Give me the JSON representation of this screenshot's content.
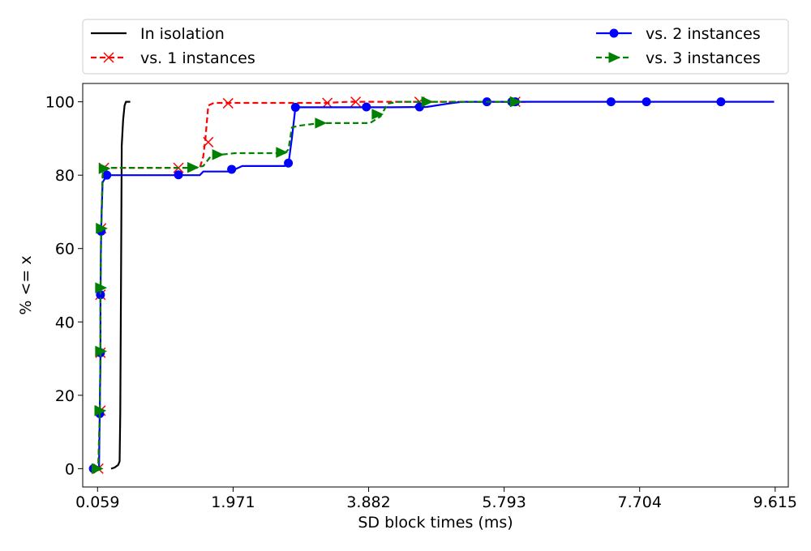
{
  "chart_data": {
    "type": "line",
    "title": "",
    "xlabel": "SD block times (ms)",
    "ylabel": "% <= x",
    "xlim": [
      -0.15,
      9.8
    ],
    "ylim": [
      -5,
      105
    ],
    "xticks": [
      0.059,
      1.971,
      3.882,
      5.793,
      7.704,
      9.615
    ],
    "xtick_labels": [
      "0.059",
      "1.971",
      "3.882",
      "5.793",
      "7.704",
      "9.615"
    ],
    "yticks": [
      0,
      20,
      40,
      60,
      80,
      100
    ],
    "ytick_labels": [
      "0",
      "20",
      "40",
      "60",
      "80",
      "100"
    ],
    "grid": false,
    "legend_placement": "top, outside plot",
    "series": [
      {
        "name": "In isolation",
        "color": "#000000",
        "dash": "solid",
        "marker": "none",
        "line": [
          [
            0.25,
            0
          ],
          [
            0.3,
            0.3
          ],
          [
            0.35,
            1
          ],
          [
            0.37,
            2
          ],
          [
            0.38,
            15
          ],
          [
            0.39,
            50
          ],
          [
            0.4,
            88
          ],
          [
            0.42,
            95
          ],
          [
            0.44,
            99
          ],
          [
            0.46,
            100
          ],
          [
            0.52,
            100
          ]
        ],
        "markers": []
      },
      {
        "name": "vs. 1 instances",
        "color": "#ff0000",
        "dash": "dashed",
        "marker": "x",
        "line": [
          [
            0.0,
            0
          ],
          [
            0.07,
            0.5
          ],
          [
            0.09,
            15
          ],
          [
            0.1,
            31
          ],
          [
            0.1,
            48
          ],
          [
            0.11,
            65
          ],
          [
            0.13,
            80
          ],
          [
            0.15,
            82
          ],
          [
            1.4,
            82
          ],
          [
            1.5,
            82
          ],
          [
            1.55,
            85
          ],
          [
            1.58,
            90
          ],
          [
            1.62,
            99
          ],
          [
            1.7,
            99.7
          ],
          [
            2.0,
            99.7
          ],
          [
            3.3,
            99.7
          ],
          [
            3.6,
            100
          ],
          [
            4.5,
            100
          ],
          [
            5.9,
            100
          ],
          [
            6.1,
            100
          ]
        ],
        "markers": [
          [
            0.07,
            0
          ],
          [
            0.1,
            15.8
          ],
          [
            0.1,
            31.6
          ],
          [
            0.1,
            47.4
          ],
          [
            0.11,
            65.5
          ],
          [
            0.15,
            82
          ],
          [
            1.2,
            82
          ],
          [
            1.62,
            89
          ],
          [
            1.9,
            99.6
          ],
          [
            3.3,
            99.7
          ],
          [
            3.7,
            100
          ],
          [
            4.6,
            100
          ],
          [
            5.95,
            100
          ]
        ]
      },
      {
        "name": "vs. 2 instances",
        "color": "#0000ff",
        "dash": "solid",
        "marker": "o",
        "line": [
          [
            0.0,
            0
          ],
          [
            0.08,
            0.3
          ],
          [
            0.09,
            15
          ],
          [
            0.1,
            31
          ],
          [
            0.1,
            47
          ],
          [
            0.11,
            65
          ],
          [
            0.13,
            78
          ],
          [
            0.19,
            80
          ],
          [
            1.4,
            80
          ],
          [
            1.5,
            80
          ],
          [
            1.55,
            81
          ],
          [
            1.9,
            81
          ],
          [
            2.0,
            81.6
          ],
          [
            2.1,
            82.5
          ],
          [
            2.7,
            82.5
          ],
          [
            2.75,
            83
          ],
          [
            2.8,
            90
          ],
          [
            2.85,
            98.5
          ],
          [
            3.5,
            98.5
          ],
          [
            4.2,
            98.5
          ],
          [
            4.7,
            98.6
          ],
          [
            5.0,
            99.5
          ],
          [
            5.2,
            100
          ],
          [
            6.1,
            100
          ],
          [
            9.6,
            100
          ]
        ],
        "markers": [
          [
            0.0,
            0
          ],
          [
            0.09,
            15
          ],
          [
            0.1,
            31.6
          ],
          [
            0.1,
            47.4
          ],
          [
            0.11,
            64.7
          ],
          [
            0.19,
            80
          ],
          [
            1.2,
            80.1
          ],
          [
            1.95,
            81.6
          ],
          [
            2.75,
            83.3
          ],
          [
            2.85,
            98.5
          ],
          [
            3.85,
            98.6
          ],
          [
            4.6,
            98.6
          ],
          [
            5.55,
            100
          ],
          [
            5.9,
            100
          ],
          [
            5.95,
            100
          ],
          [
            7.3,
            100
          ],
          [
            7.8,
            100
          ],
          [
            8.85,
            100
          ]
        ]
      },
      {
        "name": "vs. 3 instances",
        "color": "#008000",
        "dash": "dashed",
        "marker": ">",
        "line": [
          [
            0.0,
            0
          ],
          [
            0.07,
            0.3
          ],
          [
            0.09,
            15
          ],
          [
            0.1,
            31
          ],
          [
            0.1,
            48
          ],
          [
            0.11,
            64
          ],
          [
            0.13,
            80
          ],
          [
            0.15,
            82
          ],
          [
            1.4,
            82
          ],
          [
            1.55,
            82.5
          ],
          [
            1.65,
            85
          ],
          [
            1.75,
            85.5
          ],
          [
            2.0,
            86
          ],
          [
            2.7,
            86
          ],
          [
            2.75,
            87
          ],
          [
            2.8,
            93
          ],
          [
            2.9,
            93.5
          ],
          [
            3.2,
            94.2
          ],
          [
            3.9,
            94.2
          ],
          [
            4.05,
            96
          ],
          [
            4.15,
            99.5
          ],
          [
            4.3,
            100
          ],
          [
            5.0,
            100
          ],
          [
            6.0,
            100
          ]
        ],
        "markers": [
          [
            0.05,
            0
          ],
          [
            0.09,
            15.8
          ],
          [
            0.1,
            32
          ],
          [
            0.1,
            49.3
          ],
          [
            0.11,
            65.5
          ],
          [
            0.15,
            81.8
          ],
          [
            1.4,
            82.1
          ],
          [
            1.75,
            85.6
          ],
          [
            2.65,
            86.2
          ],
          [
            3.2,
            94.2
          ],
          [
            4.0,
            96.6
          ],
          [
            4.7,
            100
          ],
          [
            5.95,
            100
          ]
        ]
      }
    ]
  }
}
